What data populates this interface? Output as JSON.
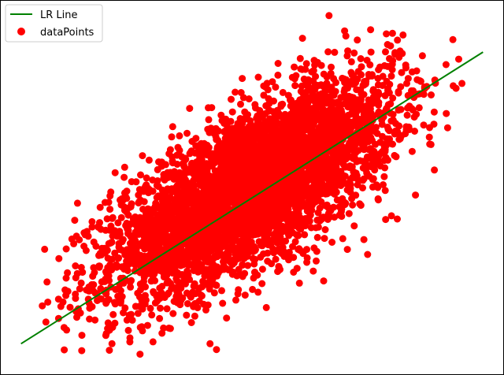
{
  "chart_data": {
    "type": "scatter",
    "title": "",
    "xlabel": "",
    "ylabel": "",
    "xlim": [
      -3.6,
      3.6
    ],
    "ylim": [
      -3.6,
      3.6
    ],
    "grid": false,
    "legend": {
      "placement": "top-left",
      "entries": [
        "LR Line",
        "dataPoints"
      ]
    },
    "series": [
      {
        "name": "LR Line",
        "kind": "line",
        "color": "#008000",
        "points": [
          [
            -3.3,
            -3.0
          ],
          [
            3.3,
            2.6
          ]
        ]
      },
      {
        "name": "dataPoints",
        "kind": "scatter",
        "color": "#ff0000",
        "approx_count": 5000,
        "correlation": 0.7,
        "outliers": [
          [
            -2.7,
            -2.2
          ],
          [
            1.1,
            3.3
          ],
          [
            1.7,
            2.6
          ],
          [
            2.1,
            2.5
          ],
          [
            2.4,
            1.8
          ],
          [
            -2.0,
            -3.0
          ],
          [
            -0.6,
            -3.0
          ],
          [
            -1.6,
            -3.2
          ]
        ]
      }
    ]
  }
}
